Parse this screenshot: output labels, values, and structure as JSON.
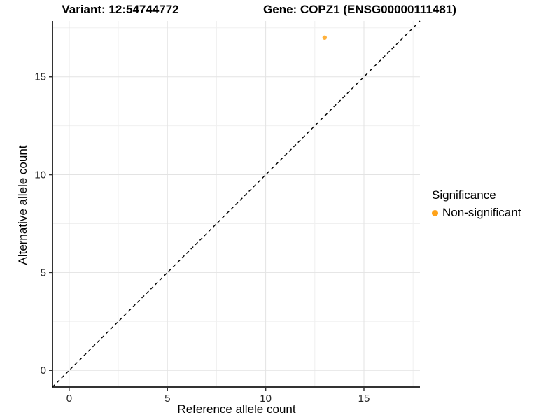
{
  "header": {
    "variant_title": "Variant: 12:54744772",
    "gene_title": "Gene: COPZ1 (ENSG00000111481)"
  },
  "legend": {
    "title": "Significance",
    "items": [
      {
        "label": "Non-significant",
        "color": "#FFA319"
      }
    ]
  },
  "chart_data": {
    "type": "scatter",
    "title": "Variant: 12:54744772 / Gene: COPZ1 (ENSG00000111481)",
    "xlabel": "Reference allele count",
    "ylabel": "Alternative allele count",
    "xlim": [
      -0.85,
      17.85
    ],
    "ylim": [
      -0.85,
      17.85
    ],
    "x_ticks": [
      0,
      5,
      10,
      15
    ],
    "y_ticks": [
      0,
      5,
      10,
      15
    ],
    "minor_tick_interval": 2.5,
    "grid": true,
    "legend_position": "right",
    "series": [
      {
        "name": "Non-significant",
        "color": "#FFA319",
        "point_opacity": 0.85,
        "point_radius": 3.2,
        "points": [
          {
            "x": 13,
            "y": 17
          }
        ]
      }
    ],
    "reference_line": {
      "type": "identity y=x",
      "style": "dashed",
      "color": "#000000"
    }
  },
  "colors": {
    "background": "#FFFFFF",
    "grid_major": "#E3E3E3",
    "grid_minor": "#F0F0F0",
    "axis_line": "#333333",
    "tick_mark": "#333333",
    "tick_label": "#262626",
    "accent_orange": "#FFA319"
  }
}
